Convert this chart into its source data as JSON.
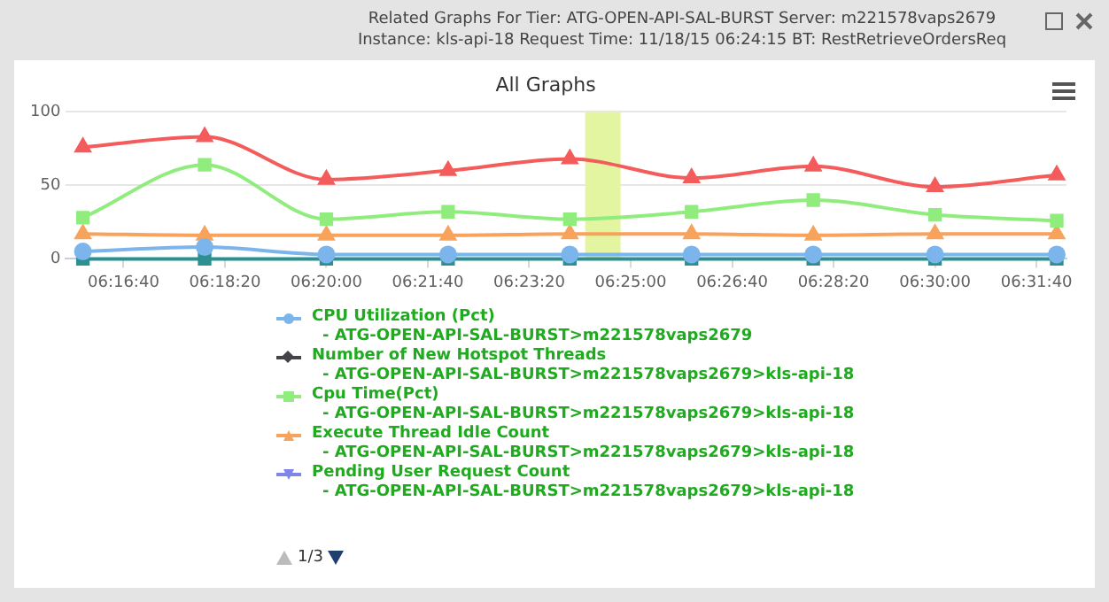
{
  "chart_data": {
    "type": "line",
    "title": "All Graphs",
    "annotations": [
      "Related Graphs For Tier: ATG-OPEN-API-SAL-BURST Server: m221578vaps2679 Instance: kls-api-18 Request Time: 11/18/15 06:24:15 BT: RestRetrieveOrdersReq",
      "1/3"
    ],
    "x": [
      6.266667,
      6.3,
      6.333333,
      6.366667,
      6.4,
      6.433333,
      6.466667,
      6.5,
      6.533333
    ],
    "xlim": [
      6.262,
      6.536
    ],
    "xticks": [
      {
        "value": 6.277778,
        "label": "06:16:40"
      },
      {
        "value": 6.305556,
        "label": "06:18:20"
      },
      {
        "value": 6.333333,
        "label": "06:20:00"
      },
      {
        "value": 6.361111,
        "label": "06:21:40"
      },
      {
        "value": 6.388889,
        "label": "06:23:20"
      },
      {
        "value": 6.416667,
        "label": "06:25:00"
      },
      {
        "value": 6.444444,
        "label": "06:26:40"
      },
      {
        "value": 6.472222,
        "label": "06:28:20"
      },
      {
        "value": 6.5,
        "label": "06:30:00"
      },
      {
        "value": 6.527778,
        "label": "06:31:40"
      }
    ],
    "ylim": [
      0,
      100
    ],
    "yticks": [
      0,
      50,
      100
    ],
    "grid": "y",
    "legend": "bottom",
    "line_style": "solid",
    "bands": [
      {
        "axis": "x",
        "from": 6.4042,
        "to": 6.4139,
        "color": "#e4f5a1"
      }
    ],
    "series": [
      {
        "name": "CPU Utilization (Pct)\n- ATG-OPEN-API-SAL-BURST>m221578vaps2679",
        "color": "#7cb5ec",
        "marker": "circle",
        "values": [
          5,
          8,
          3,
          3,
          3,
          3,
          3,
          3,
          3
        ]
      },
      {
        "name": "Number of New Hotspot Threads\n- ATG-OPEN-API-SAL-BURST>m221578vaps2679>kls-api-18",
        "color": "#434348",
        "marker": "diamond",
        "values": [
          null,
          null,
          null,
          null,
          null,
          null,
          null,
          null,
          null
        ]
      },
      {
        "name": "Cpu Time(Pct)\n- ATG-OPEN-API-SAL-BURST>m221578vaps2679>kls-api-18",
        "color": "#90ed7d",
        "marker": "square",
        "values": [
          28,
          64,
          27,
          32,
          27,
          32,
          40,
          30,
          26
        ]
      },
      {
        "name": "Execute Thread Idle Count\n- ATG-OPEN-API-SAL-BURST>m221578vaps2679>kls-api-18",
        "color": "#f7a35c",
        "marker": "triangle",
        "values": [
          17,
          16,
          16,
          16,
          17,
          17,
          16,
          17,
          17
        ]
      },
      {
        "name": "Pending User Request Count\n- ATG-OPEN-API-SAL-BURST>m221578vaps2679>kls-api-18",
        "color": "#8085e9",
        "marker": "triangle-down",
        "values": [
          null,
          null,
          null,
          null,
          null,
          null,
          null,
          null,
          null
        ]
      },
      {
        "color": "#2b908f",
        "marker": "square",
        "values": [
          0,
          0,
          0,
          0,
          0,
          0,
          0,
          0,
          0
        ]
      },
      {
        "color": "#f45b5b",
        "marker": "triangle",
        "values": [
          76,
          83,
          54,
          60,
          68,
          55,
          63,
          49,
          57
        ]
      }
    ]
  }
}
